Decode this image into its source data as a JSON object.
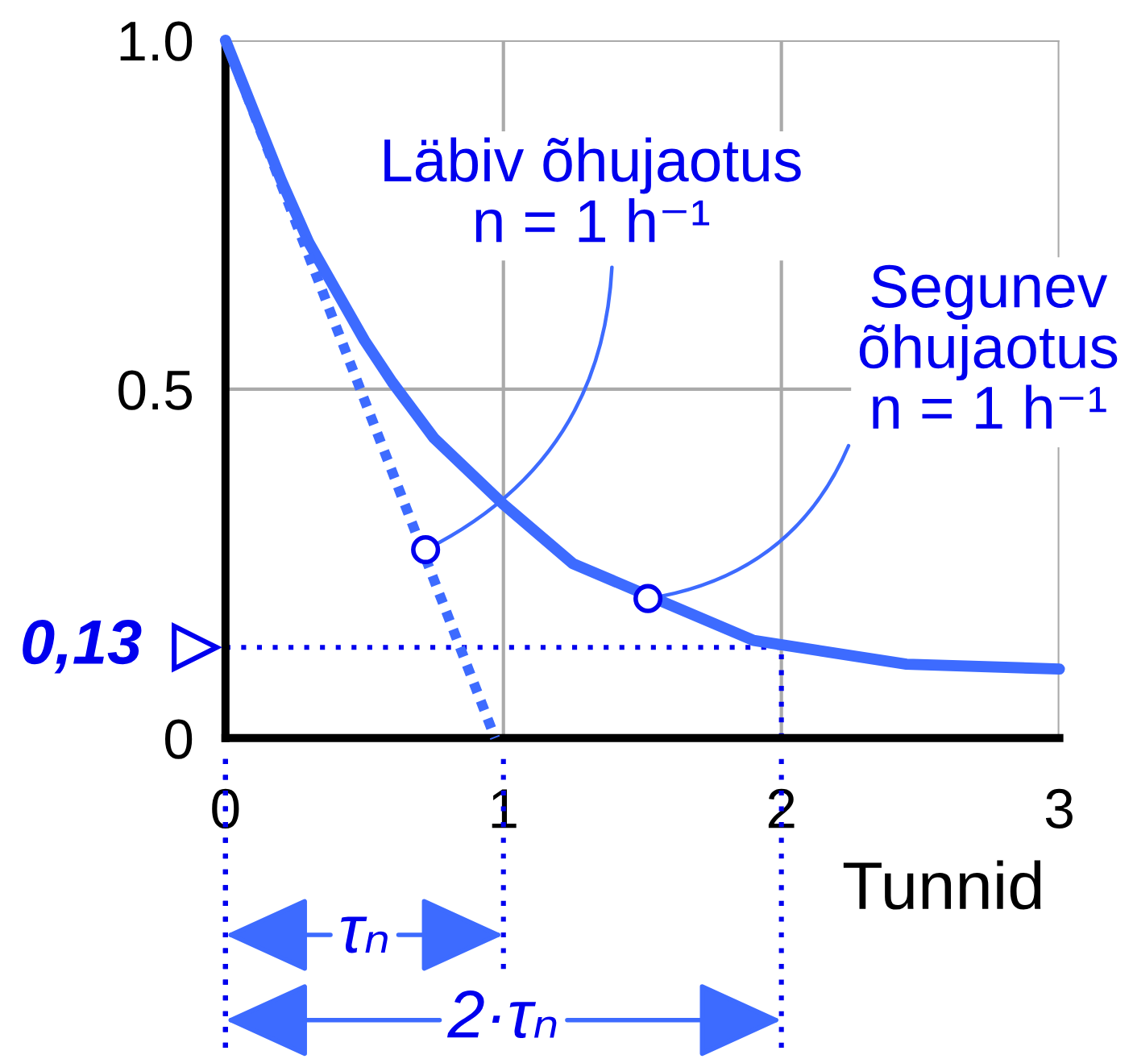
{
  "chart_data": {
    "type": "line",
    "xlabel": "Tunnid",
    "xlim": [
      0,
      3
    ],
    "xticks": [
      0,
      1,
      2,
      3
    ],
    "ylim": [
      0,
      1
    ],
    "yticks": [
      0,
      0.5,
      {
        "value": 1,
        "label": "1.0"
      }
    ],
    "grid": true,
    "series": [
      {
        "color": "#3d6bff",
        "line_style": "solid",
        "x": [
          0,
          0.1,
          0.2,
          0.3,
          0.4,
          0.5,
          0.6,
          0.75,
          1.0,
          1.25,
          1.9,
          2.45,
          3.0
        ],
        "values": [
          1.0,
          0.9,
          0.8,
          0.71,
          0.64,
          0.57,
          0.51,
          0.43,
          0.335,
          0.25,
          0.14,
          0.106,
          0.099
        ]
      },
      {
        "color": "#3d6bff",
        "line_style": "dotted",
        "x": [
          0,
          0.97
        ],
        "values": [
          1.0,
          0.0
        ]
      }
    ],
    "ref_lines": [
      {
        "axis": "y",
        "value": 0.13,
        "label": "0,13",
        "color": "#0000ee",
        "line_style": "dotted"
      },
      {
        "axis": "x",
        "value": 2,
        "color": "#0000ee",
        "line_style": "dotted"
      }
    ],
    "annotations": [
      {
        "text": "Läbiv õhujaotus\nn = 1 h⁻¹",
        "x": 0.72,
        "y": 0.27
      },
      {
        "text": "Segunev\nõhujaotus\nn = 1 h⁻¹",
        "x": 1.52,
        "y": 0.2
      },
      "τₙ",
      "2·τₙ"
    ]
  }
}
